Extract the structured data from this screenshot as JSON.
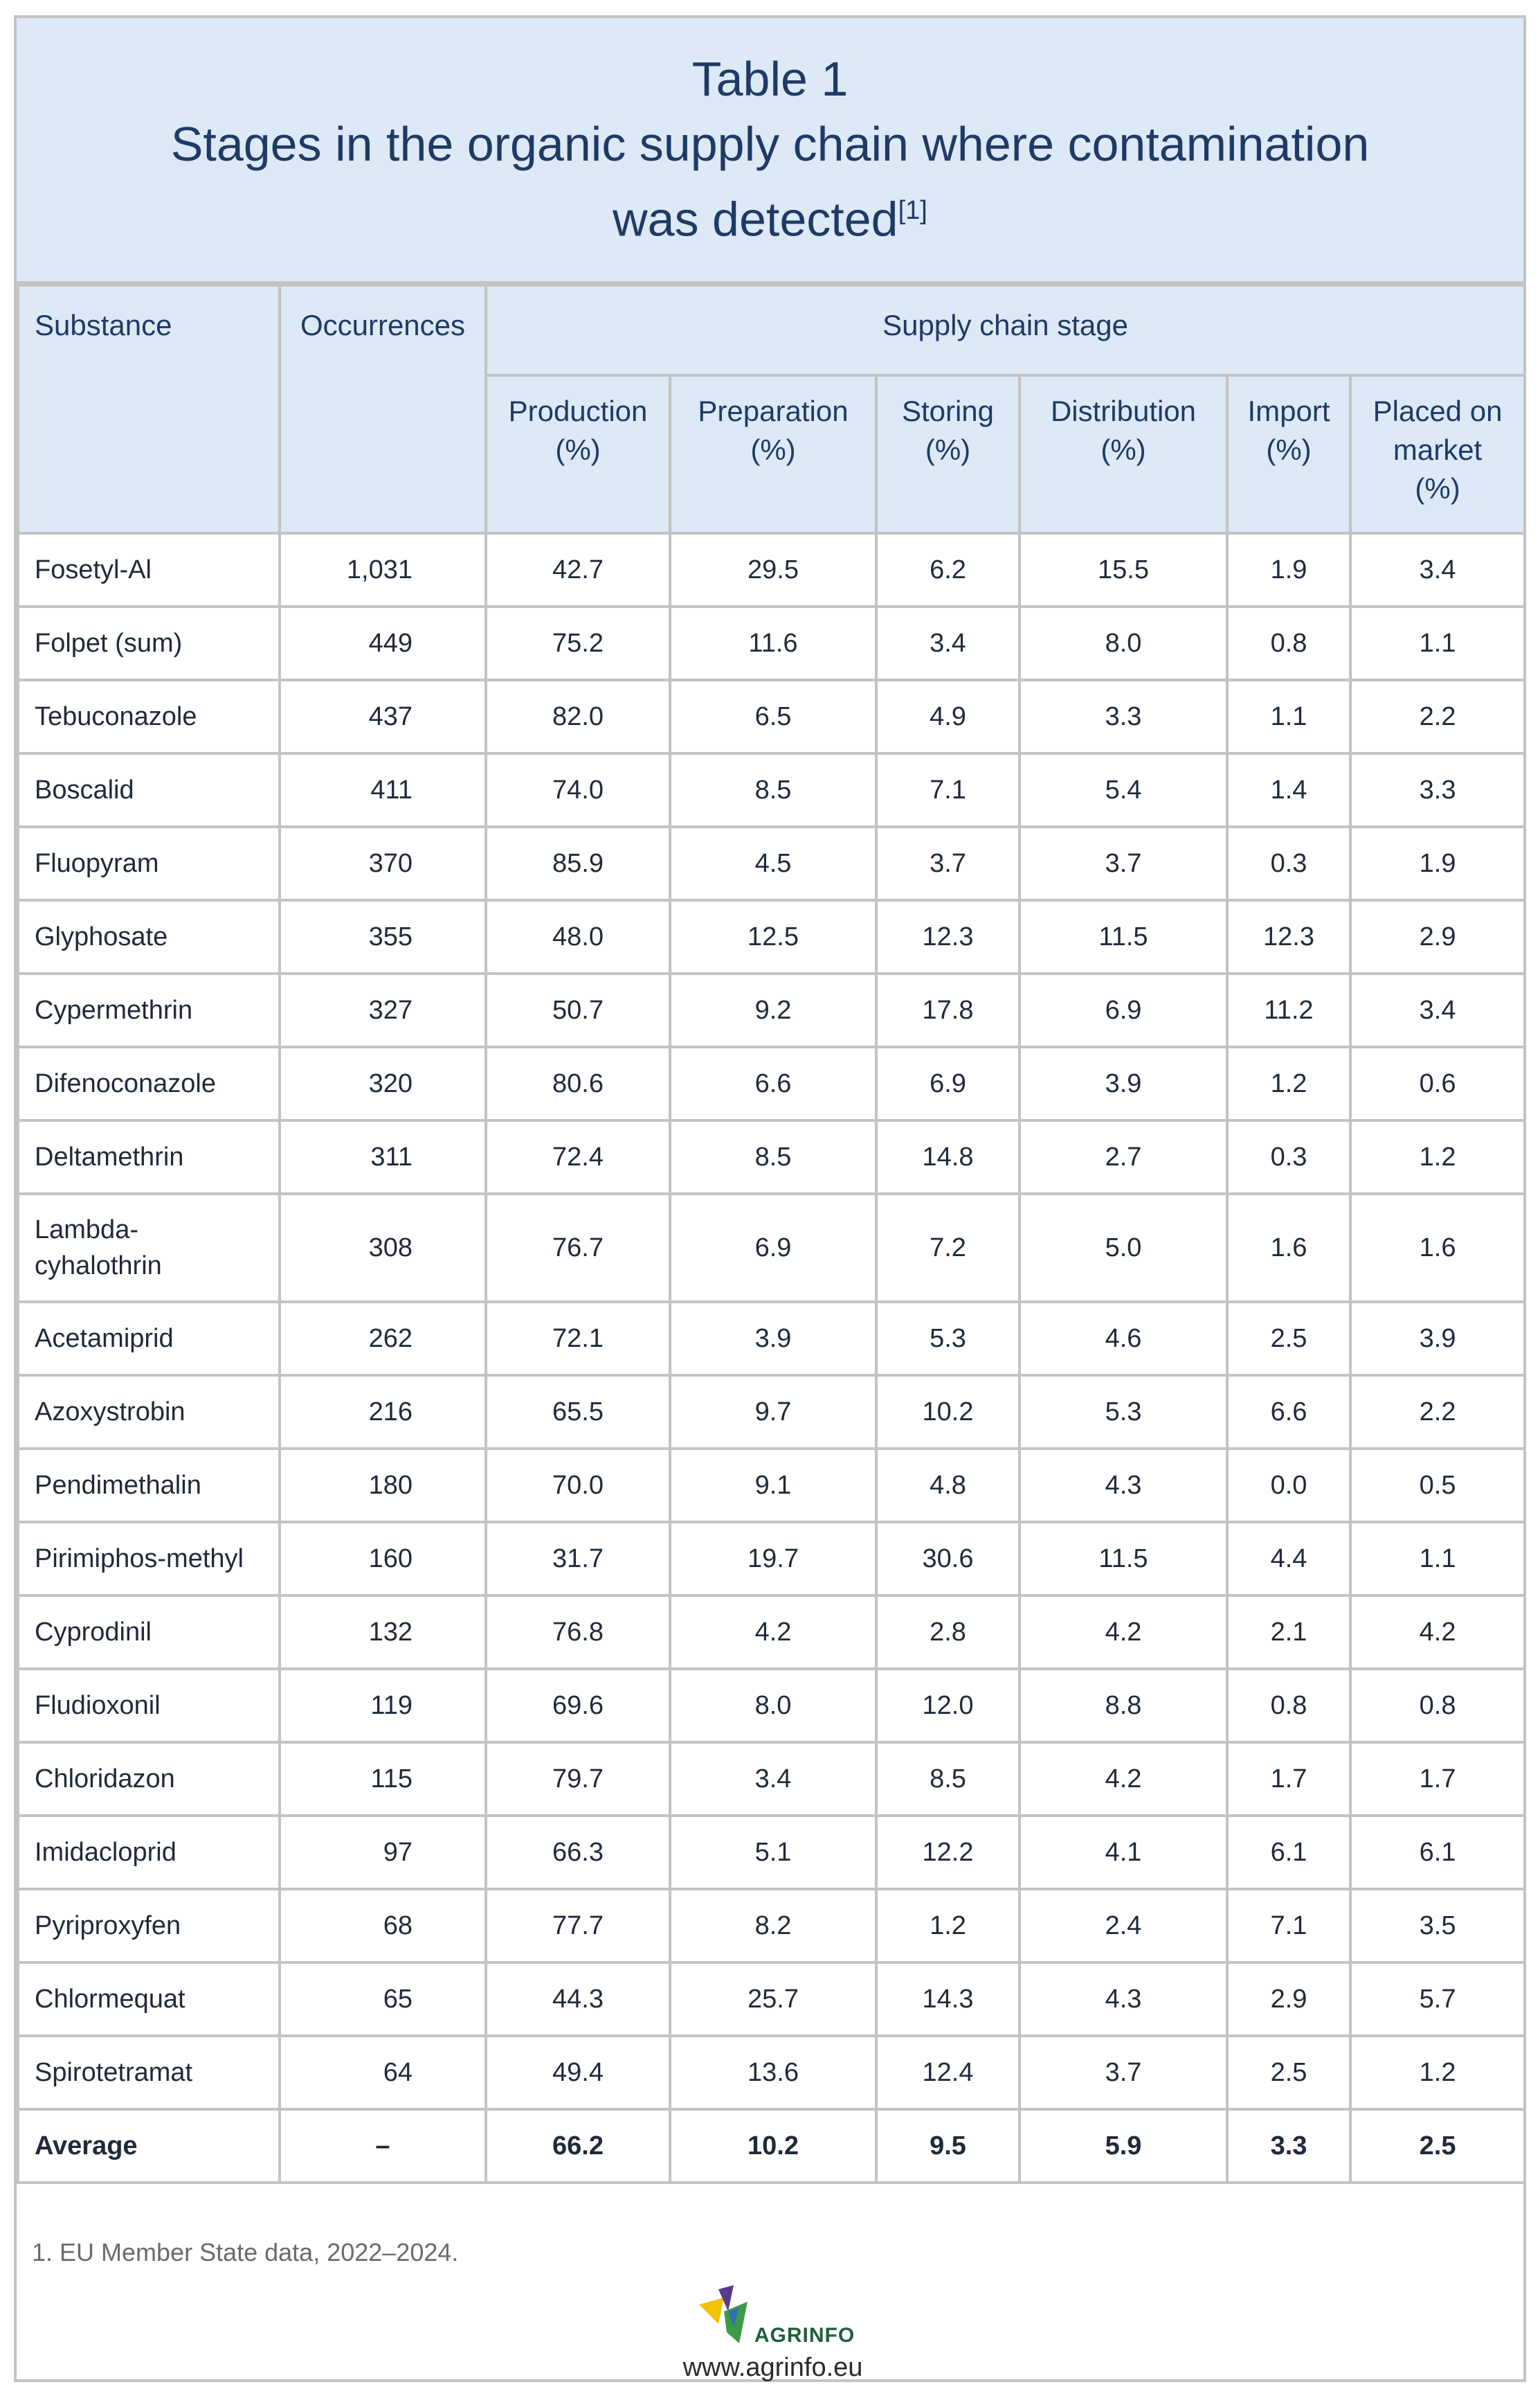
{
  "title": {
    "line1": "Table 1",
    "line2": "Stages in the organic supply chain where contamination",
    "line3": "was detected",
    "ref": "[1]"
  },
  "header": {
    "substance": "Substance",
    "occurrences": "Occurrences",
    "stage": "Supply chain stage",
    "columns": [
      {
        "l1": "Production",
        "l2": "(%)",
        "l3": ""
      },
      {
        "l1": "Preparation",
        "l2": "(%)",
        "l3": ""
      },
      {
        "l1": "Storing",
        "l2": "(%)",
        "l3": ""
      },
      {
        "l1": "Distribution",
        "l2": "(%)",
        "l3": ""
      },
      {
        "l1": "Import",
        "l2": "(%)",
        "l3": ""
      },
      {
        "l1": "Placed on",
        "l2": "market",
        "l3": "(%)"
      }
    ]
  },
  "rows": [
    {
      "name": "Fosetyl-Al",
      "occ": "1,031",
      "v": [
        "42.7",
        "29.5",
        "6.2",
        "15.5",
        "1.9",
        "3.4"
      ]
    },
    {
      "name": "Folpet (sum)",
      "occ": "449",
      "v": [
        "75.2",
        "11.6",
        "3.4",
        "8.0",
        "0.8",
        "1.1"
      ]
    },
    {
      "name": "Tebuconazole",
      "occ": "437",
      "v": [
        "82.0",
        "6.5",
        "4.9",
        "3.3",
        "1.1",
        "2.2"
      ]
    },
    {
      "name": "Boscalid",
      "occ": "411",
      "v": [
        "74.0",
        "8.5",
        "7.1",
        "5.4",
        "1.4",
        "3.3"
      ]
    },
    {
      "name": "Fluopyram",
      "occ": "370",
      "v": [
        "85.9",
        "4.5",
        "3.7",
        "3.7",
        "0.3",
        "1.9"
      ]
    },
    {
      "name": "Glyphosate",
      "occ": "355",
      "v": [
        "48.0",
        "12.5",
        "12.3",
        "11.5",
        "12.3",
        "2.9"
      ]
    },
    {
      "name": "Cypermethrin",
      "occ": "327",
      "v": [
        "50.7",
        "9.2",
        "17.8",
        "6.9",
        "11.2",
        "3.4"
      ]
    },
    {
      "name": "Difenoconazole",
      "occ": "320",
      "v": [
        "80.6",
        "6.6",
        "6.9",
        "3.9",
        "1.2",
        "0.6"
      ]
    },
    {
      "name": "Deltamethrin",
      "occ": "311",
      "v": [
        "72.4",
        "8.5",
        "14.8",
        "2.7",
        "0.3",
        "1.2"
      ]
    },
    {
      "name": "Lambda-cyhalothrin",
      "name1": "Lambda-",
      "name2": "cyhalothrin",
      "occ": "308",
      "v": [
        "76.7",
        "6.9",
        "7.2",
        "5.0",
        "1.6",
        "1.6"
      ]
    },
    {
      "name": "Acetamiprid",
      "occ": "262",
      "v": [
        "72.1",
        "3.9",
        "5.3",
        "4.6",
        "2.5",
        "3.9"
      ]
    },
    {
      "name": "Azoxystrobin",
      "occ": "216",
      "v": [
        "65.5",
        "9.7",
        "10.2",
        "5.3",
        "6.6",
        "2.2"
      ]
    },
    {
      "name": "Pendimethalin",
      "occ": "180",
      "v": [
        "70.0",
        "9.1",
        "4.8",
        "4.3",
        "0.0",
        "0.5"
      ]
    },
    {
      "name": "Pirimiphos-methyl",
      "occ": "160",
      "v": [
        "31.7",
        "19.7",
        "30.6",
        "11.5",
        "4.4",
        "1.1"
      ]
    },
    {
      "name": "Cyprodinil",
      "occ": "132",
      "v": [
        "76.8",
        "4.2",
        "2.8",
        "4.2",
        "2.1",
        "4.2"
      ]
    },
    {
      "name": "Fludioxonil",
      "occ": "119",
      "v": [
        "69.6",
        "8.0",
        "12.0",
        "8.8",
        "0.8",
        "0.8"
      ]
    },
    {
      "name": "Chloridazon",
      "occ": "115",
      "v": [
        "79.7",
        "3.4",
        "8.5",
        "4.2",
        "1.7",
        "1.7"
      ]
    },
    {
      "name": "Imidacloprid",
      "occ": "97",
      "v": [
        "66.3",
        "5.1",
        "12.2",
        "4.1",
        "6.1",
        "6.1"
      ]
    },
    {
      "name": "Pyriproxyfen",
      "occ": "68",
      "v": [
        "77.7",
        "8.2",
        "1.2",
        "2.4",
        "7.1",
        "3.5"
      ]
    },
    {
      "name": "Chlormequat",
      "occ": "65",
      "v": [
        "44.3",
        "25.7",
        "14.3",
        "4.3",
        "2.9",
        "5.7"
      ]
    },
    {
      "name": "Spirotetramat",
      "occ": "64",
      "v": [
        "49.4",
        "13.6",
        "12.4",
        "3.7",
        "2.5",
        "1.2"
      ]
    }
  ],
  "average": {
    "name": "Average",
    "occ": "–",
    "v": [
      "66.2",
      "10.2",
      "9.5",
      "5.9",
      "3.3",
      "2.5"
    ]
  },
  "footnote": "1. EU Member State data, 2022–2024.",
  "logo": {
    "word": "AGRINFO",
    "icon": "agrinfo-logo-icon",
    "colors": {
      "yellow": "#f2c400",
      "blue": "#2f6fb3",
      "green": "#3c9a48",
      "purple": "#5b3a8e"
    }
  },
  "website": "www.agrinfo.eu"
}
